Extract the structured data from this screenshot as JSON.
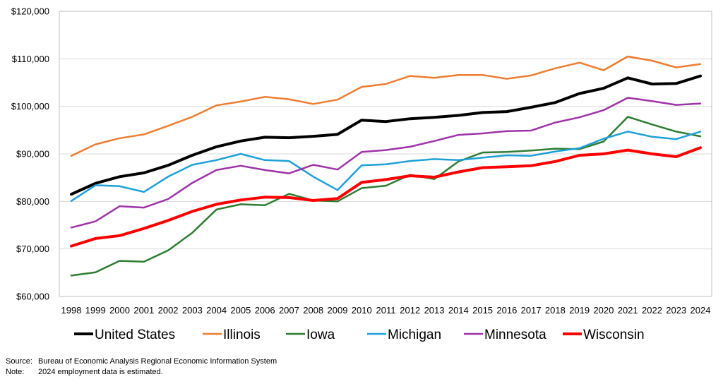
{
  "chart_data": {
    "type": "line",
    "title": "",
    "xlabel": "",
    "ylabel": "",
    "ylim": [
      60000,
      120000
    ],
    "y_ticks": [
      60000,
      70000,
      80000,
      90000,
      100000,
      110000,
      120000
    ],
    "y_tick_labels": [
      "$60,000",
      "$70,000",
      "$80,000",
      "$90,000",
      "$100,000",
      "$110,000",
      "$120,000"
    ],
    "x": [
      "1998",
      "1999",
      "2000",
      "2001",
      "2002",
      "2003",
      "2004",
      "2005",
      "2006",
      "2007",
      "2008",
      "2009",
      "2010",
      "2011",
      "2012",
      "2013",
      "2014",
      "2015",
      "2016",
      "2017",
      "2018",
      "2019",
      "2020",
      "2021",
      "2022",
      "2023",
      "2024"
    ],
    "grid": "horizontal",
    "legend_position": "bottom",
    "series": [
      {
        "name": "United States",
        "color": "#000000",
        "width": "thick",
        "values": [
          81500,
          83800,
          85200,
          86000,
          87600,
          89700,
          91500,
          92700,
          93500,
          93400,
          93700,
          94100,
          97100,
          96800,
          97400,
          97700,
          98100,
          98700,
          98900,
          99800,
          100800,
          102700,
          103800,
          106000,
          104700,
          104800,
          106400
        ]
      },
      {
        "name": "Illinois",
        "color": "#ED7D31",
        "width": "normal",
        "values": [
          89600,
          92000,
          93300,
          94100,
          95900,
          97800,
          100200,
          101000,
          102000,
          101500,
          100500,
          101400,
          104100,
          104700,
          106400,
          106000,
          106600,
          106600,
          105800,
          106500,
          108000,
          109200,
          107600,
          110500,
          109600,
          108200,
          108900
        ]
      },
      {
        "name": "Iowa",
        "color": "#2E7D32",
        "width": "normal",
        "values": [
          64400,
          65100,
          67500,
          67300,
          69700,
          73400,
          78300,
          79400,
          79200,
          81600,
          80200,
          80000,
          82800,
          83300,
          85600,
          84700,
          88400,
          90300,
          90400,
          90700,
          91100,
          91000,
          92600,
          97800,
          96200,
          94700,
          93700
        ]
      },
      {
        "name": "Michigan",
        "color": "#1EA0D8",
        "width": "normal",
        "values": [
          80100,
          83400,
          83200,
          82000,
          85200,
          87700,
          88700,
          90000,
          88700,
          88500,
          85200,
          82400,
          87600,
          87800,
          88500,
          88900,
          88700,
          89200,
          89700,
          89600,
          90500,
          91200,
          93200,
          94700,
          93600,
          93100,
          94700
        ]
      },
      {
        "name": "Minnesota",
        "color": "#9E33A8",
        "width": "normal",
        "values": [
          74500,
          75800,
          79000,
          78700,
          80500,
          83900,
          86600,
          87500,
          86600,
          85900,
          87700,
          86700,
          90400,
          90800,
          91500,
          92700,
          94000,
          94300,
          94800,
          94900,
          96600,
          97700,
          99200,
          101800,
          101100,
          100300,
          100600
        ]
      },
      {
        "name": "Wisconsin",
        "color": "#FF0000",
        "width": "thick",
        "values": [
          70600,
          72200,
          72800,
          74300,
          76000,
          77900,
          79400,
          80300,
          80900,
          80800,
          80200,
          80600,
          84000,
          84600,
          85400,
          85100,
          86200,
          87100,
          87300,
          87500,
          88400,
          89700,
          90000,
          90800,
          90000,
          89400,
          91300
        ]
      }
    ]
  },
  "footnotes": {
    "source_key": "Source:",
    "source_text": "Bureau of Economic Analysis Regional Economic Information System",
    "note_key": "Note:",
    "note_text": "2024 employment data is estimated."
  }
}
